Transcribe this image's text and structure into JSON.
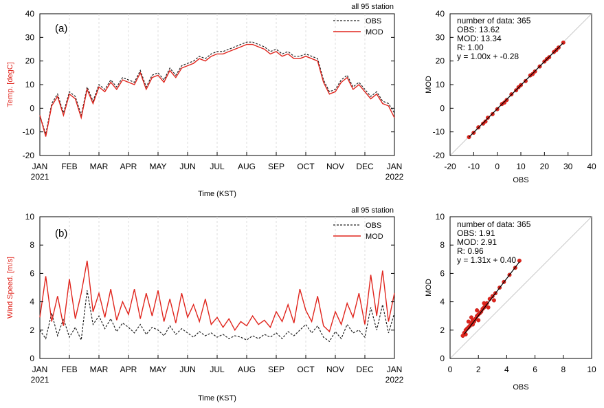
{
  "panels": {
    "a": {
      "label": "(a)",
      "station_text": "all 95 station",
      "ylabel": "Temp. [degC]",
      "xlabel": "Time (KST)",
      "legend": {
        "obs": "OBS",
        "mod": "MOD"
      },
      "scatter": {
        "xlabel": "OBS",
        "ylabel": "MOD",
        "stats": [
          "number of data: 365",
          "OBS: 13.62",
          "MOD: 13.34",
          "R:  1.00",
          "y =  1.00x + -0.28"
        ]
      }
    },
    "b": {
      "label": "(b)",
      "station_text": "all 95 station",
      "ylabel": "Wind Speed. [m/s]",
      "xlabel": "Time (KST)",
      "legend": {
        "obs": "OBS",
        "mod": "MOD"
      },
      "scatter": {
        "xlabel": "OBS",
        "ylabel": "MOD",
        "stats": [
          "number of data: 365",
          "OBS:  1.91",
          "MOD:  2.91",
          "R:  0.96",
          "y =  1.31x +  0.40"
        ]
      }
    }
  },
  "colors": {
    "mod": "#e0251d",
    "obs": "#222222",
    "axis": "#000000",
    "grid": "#dcdcdc",
    "one_to_one": "#c8c8c8"
  },
  "chart_data": [
    {
      "type": "line",
      "id": "temp-timeseries",
      "xlabel": "Time (KST)",
      "ylabel": "Temp. [degC]",
      "ylim": [
        -20,
        40
      ],
      "yticks": [
        -20,
        -10,
        0,
        10,
        20,
        30,
        40
      ],
      "xticks": [
        "JAN\n2021",
        "FEB",
        "MAR",
        "APR",
        "MAY",
        "JUN",
        "JUL",
        "AUG",
        "SEP",
        "OCT",
        "NOV",
        "DEC",
        "JAN\n2022"
      ],
      "grid": true,
      "legend": "top-right",
      "series": [
        {
          "name": "OBS",
          "style": "dashed",
          "x_month": [
            0,
            0.2,
            0.4,
            0.6,
            0.8,
            1.0,
            1.2,
            1.4,
            1.6,
            1.8,
            2.0,
            2.2,
            2.4,
            2.6,
            2.8,
            3.0,
            3.2,
            3.4,
            3.6,
            3.8,
            4.0,
            4.2,
            4.4,
            4.6,
            4.8,
            5.0,
            5.2,
            5.4,
            5.6,
            5.8,
            6.0,
            6.2,
            6.4,
            6.6,
            6.8,
            7.0,
            7.2,
            7.4,
            7.6,
            7.8,
            8.0,
            8.2,
            8.4,
            8.6,
            8.8,
            9.0,
            9.2,
            9.4,
            9.6,
            9.8,
            10.0,
            10.2,
            10.4,
            10.6,
            10.8,
            11.0,
            11.2,
            11.4,
            11.6,
            11.8,
            12.0
          ],
          "values": [
            -3,
            -11,
            2,
            6,
            -2,
            7,
            5,
            -3,
            9,
            3,
            10,
            8,
            12,
            9,
            13,
            12,
            11,
            16,
            9,
            14,
            15,
            12,
            17,
            14,
            18,
            19,
            20,
            22,
            21,
            23,
            24,
            24,
            25,
            26,
            27,
            28,
            28,
            27,
            26,
            24,
            25,
            23,
            24,
            22,
            22,
            23,
            22,
            21,
            12,
            7,
            8,
            12,
            14,
            9,
            11,
            8,
            5,
            7,
            3,
            2,
            -2
          ]
        },
        {
          "name": "MOD",
          "style": "solid",
          "x_month": [
            0,
            0.2,
            0.4,
            0.6,
            0.8,
            1.0,
            1.2,
            1.4,
            1.6,
            1.8,
            2.0,
            2.2,
            2.4,
            2.6,
            2.8,
            3.0,
            3.2,
            3.4,
            3.6,
            3.8,
            4.0,
            4.2,
            4.4,
            4.6,
            4.8,
            5.0,
            5.2,
            5.4,
            5.6,
            5.8,
            6.0,
            6.2,
            6.4,
            6.6,
            6.8,
            7.0,
            7.2,
            7.4,
            7.6,
            7.8,
            8.0,
            8.2,
            8.4,
            8.6,
            8.8,
            9.0,
            9.2,
            9.4,
            9.6,
            9.8,
            10.0,
            10.2,
            10.4,
            10.6,
            10.8,
            11.0,
            11.2,
            11.4,
            11.6,
            11.8,
            12.0
          ],
          "values": [
            -3,
            -12,
            1,
            5,
            -3,
            6,
            4,
            -4,
            8,
            2,
            9,
            7,
            11,
            8,
            12,
            11,
            10,
            15,
            8,
            13,
            14,
            11,
            16,
            13,
            17,
            18,
            19,
            21,
            20,
            22,
            23,
            23,
            24,
            25,
            26,
            27,
            27,
            26,
            25,
            23,
            24,
            22,
            23,
            21,
            21,
            22,
            21,
            20,
            11,
            6,
            7,
            11,
            13,
            8,
            10,
            7,
            4,
            6,
            2,
            1,
            -4
          ]
        }
      ]
    },
    {
      "type": "scatter",
      "id": "temp-scatter",
      "xlabel": "OBS",
      "ylabel": "MOD",
      "xlim": [
        -20,
        40
      ],
      "ylim": [
        -20,
        40
      ],
      "ticks": [
        -20,
        -10,
        0,
        10,
        20,
        30,
        40
      ],
      "fit": {
        "slope": 1.0,
        "intercept": -0.28,
        "x_range": [
          -12,
          28
        ]
      },
      "points": {
        "obs": [
          -12,
          -10,
          -8,
          -6,
          -4,
          -2,
          0,
          2,
          4,
          6,
          8,
          10,
          12,
          14,
          16,
          18,
          20,
          22,
          24,
          26,
          28,
          -5,
          3,
          9,
          15,
          21,
          25
        ],
        "mod": [
          -12.2,
          -10.4,
          -8.1,
          -6.5,
          -4.0,
          -2.5,
          -0.4,
          1.8,
          3.5,
          5.9,
          7.6,
          9.8,
          11.5,
          13.9,
          15.6,
          17.7,
          19.8,
          21.6,
          23.8,
          25.7,
          27.8,
          -5.6,
          2.4,
          8.9,
          14.5,
          20.8,
          24.6
        ]
      }
    },
    {
      "type": "line",
      "id": "wind-timeseries",
      "xlabel": "Time (KST)",
      "ylabel": "Wind Speed. [m/s]",
      "ylim": [
        0,
        10
      ],
      "yticks": [
        0,
        2,
        4,
        6,
        8,
        10
      ],
      "xticks": [
        "JAN\n2021",
        "FEB",
        "MAR",
        "APR",
        "MAY",
        "JUN",
        "JUL",
        "AUG",
        "SEP",
        "OCT",
        "NOV",
        "DEC",
        "JAN\n2022"
      ],
      "grid": true,
      "legend": "top-right",
      "series": [
        {
          "name": "OBS",
          "style": "dashed",
          "x_month": [
            0,
            0.2,
            0.4,
            0.6,
            0.8,
            1.0,
            1.2,
            1.4,
            1.6,
            1.8,
            2.0,
            2.2,
            2.4,
            2.6,
            2.8,
            3.0,
            3.2,
            3.4,
            3.6,
            3.8,
            4.0,
            4.2,
            4.4,
            4.6,
            4.8,
            5.0,
            5.2,
            5.4,
            5.6,
            5.8,
            6.0,
            6.2,
            6.4,
            6.6,
            6.8,
            7.0,
            7.2,
            7.4,
            7.6,
            7.8,
            8.0,
            8.2,
            8.4,
            8.6,
            8.8,
            9.0,
            9.2,
            9.4,
            9.6,
            9.8,
            10.0,
            10.2,
            10.4,
            10.6,
            10.8,
            11.0,
            11.2,
            11.4,
            11.6,
            11.8,
            12.0
          ],
          "values": [
            2.0,
            1.4,
            3.2,
            1.6,
            2.8,
            1.5,
            2.2,
            1.3,
            4.8,
            2.4,
            3.0,
            2.1,
            2.8,
            1.9,
            2.5,
            2.2,
            1.8,
            2.4,
            1.7,
            2.2,
            2.0,
            1.6,
            2.3,
            1.7,
            2.1,
            1.8,
            1.5,
            1.9,
            1.6,
            1.8,
            1.5,
            1.7,
            1.4,
            1.6,
            1.5,
            1.3,
            1.6,
            1.4,
            1.7,
            1.5,
            1.8,
            1.4,
            1.9,
            1.6,
            2.0,
            2.4,
            1.8,
            2.3,
            1.5,
            1.2,
            1.9,
            1.4,
            2.4,
            1.8,
            2.0,
            1.5,
            3.6,
            2.0,
            3.8,
            1.8,
            3.2
          ]
        },
        {
          "name": "MOD",
          "style": "solid",
          "x_month": [
            0,
            0.2,
            0.4,
            0.6,
            0.8,
            1.0,
            1.2,
            1.4,
            1.6,
            1.8,
            2.0,
            2.2,
            2.4,
            2.6,
            2.8,
            3.0,
            3.2,
            3.4,
            3.6,
            3.8,
            4.0,
            4.2,
            4.4,
            4.6,
            4.8,
            5.0,
            5.2,
            5.4,
            5.6,
            5.8,
            6.0,
            6.2,
            6.4,
            6.6,
            6.8,
            7.0,
            7.2,
            7.4,
            7.6,
            7.8,
            8.0,
            8.2,
            8.4,
            8.6,
            8.8,
            9.0,
            9.2,
            9.4,
            9.6,
            9.8,
            10.0,
            10.2,
            10.4,
            10.6,
            10.8,
            11.0,
            11.2,
            11.4,
            11.6,
            11.8,
            12.0
          ],
          "values": [
            2.9,
            5.8,
            2.6,
            4.4,
            2.3,
            5.6,
            2.8,
            4.6,
            6.9,
            3.3,
            4.6,
            2.9,
            4.9,
            2.7,
            4.0,
            3.1,
            4.9,
            2.8,
            4.6,
            3.0,
            4.8,
            2.6,
            4.2,
            2.5,
            4.6,
            2.9,
            3.8,
            2.6,
            4.2,
            2.4,
            2.9,
            2.2,
            2.8,
            2.0,
            2.6,
            2.3,
            3.0,
            2.4,
            2.7,
            2.2,
            3.3,
            2.6,
            3.8,
            2.5,
            4.9,
            3.4,
            2.6,
            4.4,
            2.3,
            1.9,
            3.3,
            2.4,
            3.9,
            2.9,
            4.6,
            2.4,
            5.9,
            3.0,
            6.2,
            2.6,
            4.6
          ]
        }
      ]
    },
    {
      "type": "scatter",
      "id": "wind-scatter",
      "xlabel": "OBS",
      "ylabel": "MOD",
      "xlim": [
        0,
        10
      ],
      "ylim": [
        0,
        10
      ],
      "ticks": [
        0,
        2,
        4,
        6,
        8,
        10
      ],
      "fit": {
        "slope": 1.31,
        "intercept": 0.4,
        "x_range": [
          1.0,
          4.9
        ]
      },
      "points": {
        "obs": [
          0.9,
          1.0,
          1.1,
          1.2,
          1.3,
          1.4,
          1.5,
          1.6,
          1.7,
          1.8,
          1.9,
          2.0,
          2.1,
          2.2,
          2.3,
          2.4,
          2.5,
          2.6,
          2.8,
          3.0,
          3.2,
          3.5,
          3.8,
          4.2,
          4.6,
          4.9,
          1.3,
          1.6,
          2.0,
          2.4,
          1.1,
          1.5,
          1.9,
          2.7,
          3.1
        ],
        "mod": [
          1.6,
          1.8,
          2.0,
          2.1,
          2.2,
          2.3,
          2.5,
          2.7,
          2.6,
          2.8,
          3.0,
          3.1,
          3.2,
          3.3,
          3.5,
          3.6,
          3.7,
          3.9,
          4.2,
          4.4,
          4.6,
          5.0,
          5.4,
          5.9,
          6.4,
          6.9,
          2.6,
          2.4,
          2.7,
          3.9,
          1.7,
          2.9,
          3.4,
          3.6,
          4.1
        ]
      }
    }
  ]
}
